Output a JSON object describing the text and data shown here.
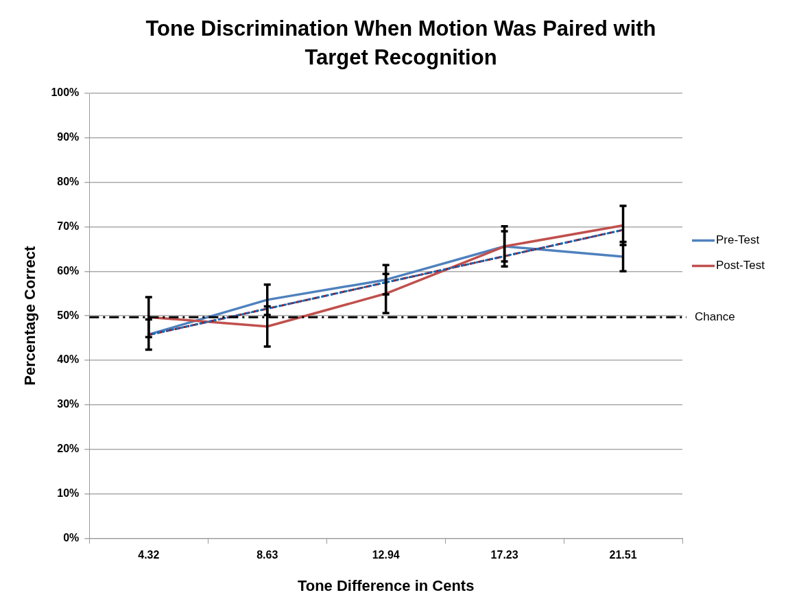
{
  "chart_data": {
    "type": "line",
    "title": "Tone Discrimination When Motion Was Paired with Target Recognition",
    "xlabel": "Tone Difference in Cents",
    "ylabel": "Percentage Correct",
    "categories": [
      "4.32",
      "8.63",
      "12.94",
      "17.23",
      "21.51"
    ],
    "ylim": [
      0,
      100
    ],
    "yticks": [
      {
        "value": 0,
        "label": "0%"
      },
      {
        "value": 10,
        "label": "10%"
      },
      {
        "value": 20,
        "label": "20%"
      },
      {
        "value": 30,
        "label": "30%"
      },
      {
        "value": 40,
        "label": "40%"
      },
      {
        "value": 50,
        "label": "50%"
      },
      {
        "value": 60,
        "label": "60%"
      },
      {
        "value": 70,
        "label": "70%"
      },
      {
        "value": 80,
        "label": "80%"
      },
      {
        "value": 90,
        "label": "90%"
      },
      {
        "value": 100,
        "label": "100%"
      }
    ],
    "grid": "y",
    "legend": "right",
    "series": [
      {
        "name": "Pre-Test",
        "color": "#4f81bd",
        "values": [
          45.8,
          53.6,
          58.1,
          65.6,
          63.3
        ],
        "errors": [
          3.4,
          3.4,
          3.3,
          3.4,
          3.3
        ]
      },
      {
        "name": "Post-Test",
        "color": "#c0504d",
        "values": [
          49.7,
          47.6,
          55.0,
          65.6,
          70.3
        ],
        "errors": [
          4.5,
          4.5,
          4.4,
          4.5,
          4.4
        ]
      },
      {
        "type": "line",
        "x": [
          "4.32",
          "21.51"
        ],
        "values": [
          45.7,
          69.3
        ],
        "color": "#c00000",
        "line_style": "dashed"
      },
      {
        "type": "line",
        "x": [
          "4.32",
          "21.51"
        ],
        "values": [
          45.7,
          69.3
        ],
        "color": "#0070c0",
        "line_style": "dotted"
      }
    ],
    "ref_lines": [
      {
        "axis": "y",
        "value": 49.7,
        "label": "Chance",
        "color": "#000000",
        "line_style": "dashed"
      }
    ]
  }
}
